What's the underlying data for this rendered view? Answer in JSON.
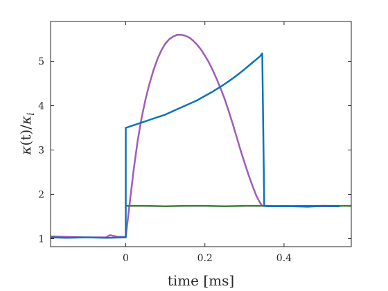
{
  "chart_data": {
    "type": "line",
    "xlabel": "time [ms]",
    "ylabel_parts": {
      "kappa1": "κ",
      "t": "(t)",
      "slash": "/",
      "kappa2": "κ",
      "sub": "i"
    },
    "xlim": [
      -0.19,
      0.57
    ],
    "ylim": [
      0.82,
      5.9
    ],
    "xticks": [
      0,
      0.2,
      0.4
    ],
    "xtick_labels": [
      "0",
      "0.2",
      "0.4"
    ],
    "yticks": [
      1,
      2,
      3,
      4,
      5
    ],
    "ytick_labels": [
      "1",
      "2",
      "3",
      "4",
      "5"
    ],
    "grid": false,
    "series": [
      {
        "color": "#a15bb8",
        "x": [
          -0.19,
          -0.15,
          -0.1,
          -0.05,
          -0.04,
          -0.02,
          0.0,
          0.01,
          0.02,
          0.03,
          0.04,
          0.05,
          0.06,
          0.07,
          0.08,
          0.09,
          0.1,
          0.11,
          0.12,
          0.13,
          0.14,
          0.15,
          0.16,
          0.17,
          0.18,
          0.19,
          0.2,
          0.21,
          0.22,
          0.23,
          0.24,
          0.25,
          0.26,
          0.27,
          0.28,
          0.29,
          0.3,
          0.31,
          0.32,
          0.33,
          0.34,
          0.345,
          0.36,
          0.4,
          0.45,
          0.5,
          0.54
        ],
        "y": [
          1.05,
          1.04,
          1.03,
          1.03,
          1.08,
          1.04,
          1.04,
          1.8,
          2.55,
          3.2,
          3.72,
          4.15,
          4.5,
          4.8,
          5.05,
          5.25,
          5.4,
          5.5,
          5.56,
          5.6,
          5.6,
          5.58,
          5.54,
          5.47,
          5.38,
          5.27,
          5.13,
          4.98,
          4.8,
          4.6,
          4.38,
          4.15,
          3.88,
          3.6,
          3.3,
          3.0,
          2.72,
          2.45,
          2.2,
          1.97,
          1.8,
          1.74,
          1.73,
          1.74,
          1.73,
          1.73,
          1.73
        ]
      },
      {
        "color": "#3e7f3a",
        "x": [
          0.0,
          0.05,
          0.1,
          0.15,
          0.2,
          0.25,
          0.3,
          0.35,
          0.4,
          0.45,
          0.5,
          0.57
        ],
        "y": [
          1.74,
          1.74,
          1.73,
          1.74,
          1.74,
          1.73,
          1.74,
          1.74,
          1.73,
          1.74,
          1.74,
          1.74
        ]
      },
      {
        "color": "#0a72bd",
        "x": [
          -0.19,
          -0.15,
          -0.1,
          -0.05,
          0.0,
          0.0,
          0.02,
          0.04,
          0.06,
          0.08,
          0.1,
          0.12,
          0.14,
          0.16,
          0.18,
          0.2,
          0.22,
          0.24,
          0.26,
          0.28,
          0.3,
          0.32,
          0.34,
          0.345,
          0.35,
          0.38,
          0.42,
          0.46,
          0.5,
          0.54
        ],
        "y": [
          1.03,
          1.02,
          1.03,
          1.02,
          1.03,
          3.5,
          3.56,
          3.62,
          3.68,
          3.74,
          3.8,
          3.88,
          3.96,
          4.04,
          4.12,
          4.22,
          4.32,
          4.43,
          4.55,
          4.68,
          4.82,
          4.97,
          5.12,
          5.18,
          1.74,
          1.73,
          1.73,
          1.72,
          1.74,
          1.73
        ]
      }
    ]
  }
}
